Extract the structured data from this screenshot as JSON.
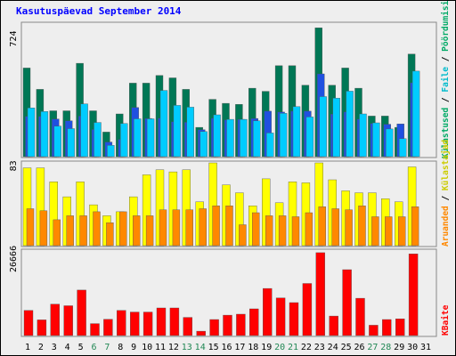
{
  "title": "Kasutuspäevad September 2014",
  "colors": {
    "dark_green": "#007755",
    "cyan": "#00ccff",
    "blue": "#2050e0",
    "yellow": "#ffff00",
    "orange": "#ff8800",
    "red": "#ff0000",
    "weekend_day": "#228855",
    "legend_green": "#00aa66",
    "legend_cyan": "#00bbcc",
    "legend_blue": "#0000cc",
    "legend_yellow": "#cccc00",
    "legend_orange": "#ff8800",
    "legend_red": "#ff0000"
  },
  "chart_data": [
    {
      "type": "bar",
      "panel": "top",
      "ymax_label": "724",
      "ylim": [
        0,
        724
      ],
      "categories": [
        "1",
        "2",
        "3",
        "4",
        "5",
        "6",
        "7",
        "8",
        "9",
        "10",
        "11",
        "12",
        "13",
        "14",
        "15",
        "16",
        "17",
        "18",
        "19",
        "20",
        "21",
        "22",
        "23",
        "24",
        "25",
        "26",
        "27",
        "28",
        "29",
        "30",
        "31"
      ],
      "weekend_days": [
        "6",
        "7",
        "13",
        "14",
        "20",
        "21",
        "27",
        "28"
      ],
      "series": [
        {
          "name": "Külastused",
          "color_key": "dark_green",
          "values": [
            487,
            370,
            252,
            252,
            513,
            252,
            135,
            235,
            404,
            404,
            446,
            433,
            370,
            161,
            315,
            293,
            287,
            376,
            359,
            500,
            500,
            393,
            708,
            393,
            487,
            376,
            223,
            223,
            161,
            564,
            0
          ]
        },
        {
          "name": "Külastajad",
          "color_key": "blue",
          "values": [
            221,
            221,
            207,
            197,
            223,
            149,
            80,
            95,
            270,
            210,
            212,
            192,
            189,
            148,
            211,
            202,
            205,
            210,
            250,
            245,
            250,
            250,
            455,
            234,
            246,
            206,
            182,
            178,
            180,
            406,
            0
          ]
        },
        {
          "name": "Failid",
          "color_key": "cyan",
          "values": [
            268,
            248,
            168,
            154,
            290,
            188,
            62,
            182,
            208,
            208,
            364,
            282,
            272,
            138,
            230,
            205,
            205,
            197,
            130,
            238,
            275,
            218,
            330,
            322,
            360,
            235,
            186,
            152,
            99,
            470,
            0
          ]
        },
        {
          "name": "Pöördumisi",
          "color_key": "dark_green",
          "values": [
            0,
            0,
            0,
            0,
            0,
            0,
            0,
            0,
            0,
            0,
            0,
            0,
            0,
            0,
            0,
            0,
            0,
            0,
            0,
            0,
            0,
            0,
            0,
            0,
            0,
            0,
            0,
            0,
            0,
            0,
            0
          ]
        }
      ]
    },
    {
      "type": "bar",
      "panel": "middle",
      "ymax_label": "83",
      "ylim": [
        0,
        83
      ],
      "series": [
        {
          "name": "Külastajad",
          "color_key": "yellow",
          "values": [
            78,
            78,
            64,
            49,
            64,
            41,
            30,
            34,
            49,
            71,
            76,
            74,
            76,
            44,
            83,
            61,
            53,
            40,
            67,
            43,
            64,
            63,
            83,
            66,
            55,
            53,
            53,
            47,
            44,
            79,
            0
          ]
        },
        {
          "name": "Aruanded",
          "color_key": "orange",
          "values": [
            37,
            35,
            26,
            30,
            30,
            34,
            23,
            34,
            30,
            30,
            36,
            36,
            36,
            37,
            40,
            40,
            21,
            33,
            30,
            30,
            29,
            33,
            39,
            37,
            36,
            40,
            29,
            29,
            29,
            39,
            0
          ]
        }
      ]
    },
    {
      "type": "bar",
      "panel": "bottom",
      "ymax_label": "26666",
      "ylim": [
        0,
        26666
      ],
      "series": [
        {
          "name": "KBaite",
          "color_key": "red",
          "values": [
            8000,
            5000,
            10000,
            9500,
            14500,
            3800,
            5200,
            8000,
            7500,
            7500,
            8800,
            8800,
            5800,
            1400,
            5100,
            6500,
            6800,
            8500,
            15000,
            12000,
            10500,
            16600,
            26400,
            6200,
            21000,
            11900,
            3300,
            5100,
            5300,
            26000,
            0
          ]
        }
      ]
    }
  ],
  "legend": {
    "top_parts": [
      "Külastused",
      " / ",
      "Faile",
      " / ",
      "Pöördumisi"
    ],
    "middle_parts": [
      "Aruanded",
      " / ",
      "Külastajad"
    ],
    "bottom_label": "KBaite"
  }
}
